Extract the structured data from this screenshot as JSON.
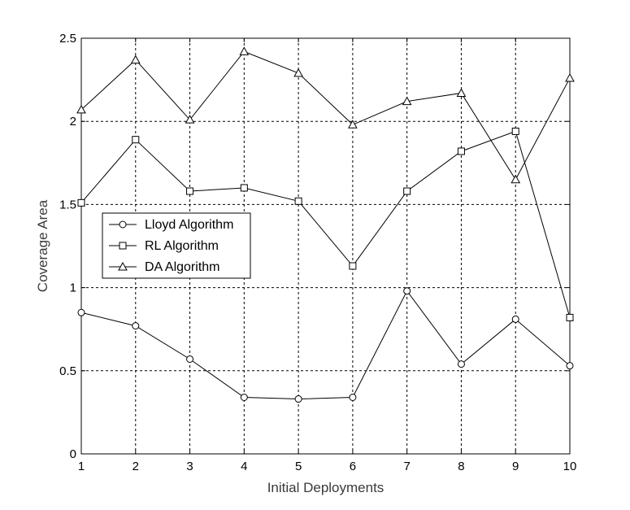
{
  "chart_data": {
    "type": "line",
    "title": "",
    "xlabel": "Initial Deployments",
    "ylabel": "Coverage Area",
    "x": [
      1,
      2,
      3,
      4,
      5,
      6,
      7,
      8,
      9,
      10
    ],
    "xlim": [
      1,
      10
    ],
    "ylim": [
      0,
      2.5
    ],
    "xticks": [
      1,
      2,
      3,
      4,
      5,
      6,
      7,
      8,
      9,
      10
    ],
    "yticks": [
      0,
      0.5,
      1,
      1.5,
      2,
      2.5
    ],
    "ytick_labels": [
      "0",
      "0.5",
      "1",
      "1.5",
      "2",
      "2.5"
    ],
    "grid": true,
    "legend_position": "left-middle",
    "line_color": "#000000",
    "grid_color": "#000000",
    "series": [
      {
        "name": "Lloyd Algorithm",
        "marker": "circle",
        "values": [
          0.85,
          0.77,
          0.57,
          0.34,
          0.33,
          0.34,
          0.98,
          0.54,
          0.81,
          0.53
        ]
      },
      {
        "name": "RL Algorithm",
        "marker": "square",
        "values": [
          1.51,
          1.89,
          1.58,
          1.6,
          1.52,
          1.13,
          1.58,
          1.82,
          1.94,
          0.82
        ]
      },
      {
        "name": "DA Algorithm",
        "marker": "triangle",
        "values": [
          2.07,
          2.37,
          2.01,
          2.42,
          2.29,
          1.98,
          2.12,
          2.17,
          1.65,
          2.26
        ]
      }
    ]
  }
}
